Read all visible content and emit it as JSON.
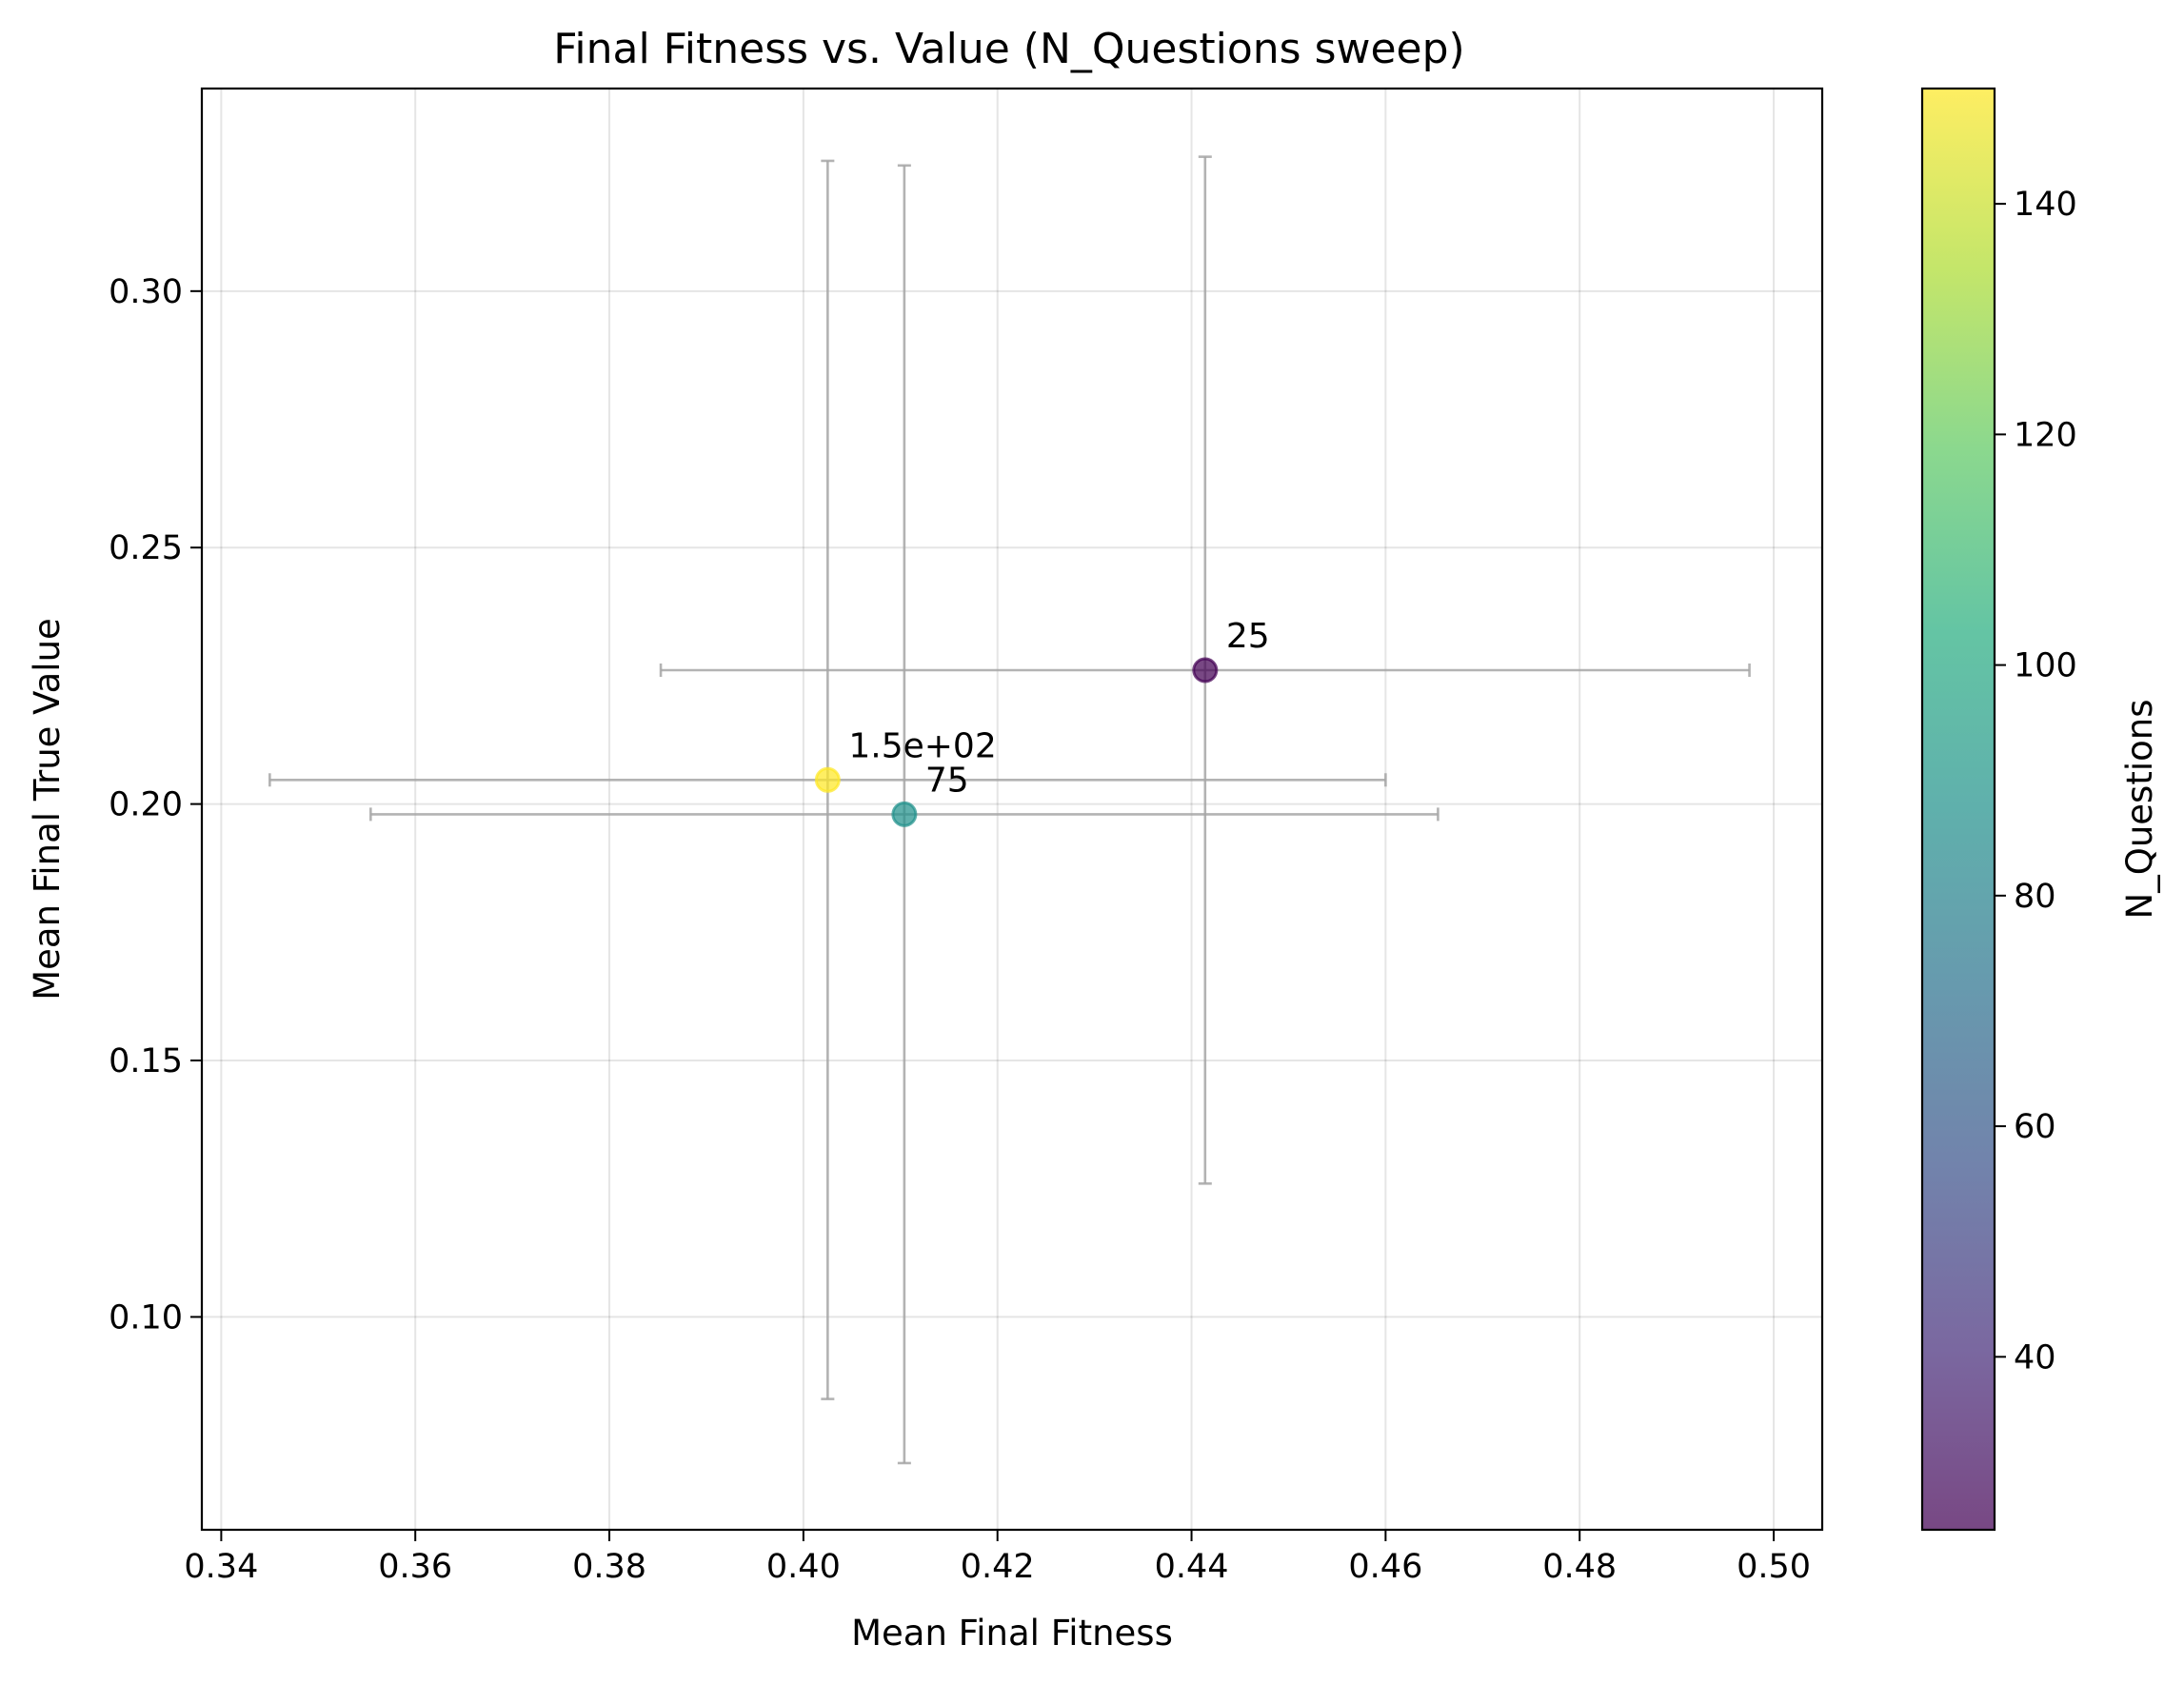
{
  "chart_data": {
    "type": "scatter",
    "title": "Final Fitness vs. Value (N_Questions sweep)",
    "xlabel": "Mean Final Fitness",
    "ylabel": "Mean Final True Value",
    "xlim": [
      0.338,
      0.505
    ],
    "ylim": [
      0.0585,
      0.3395
    ],
    "x_ticks": [
      0.34,
      0.36,
      0.38,
      0.4,
      0.42,
      0.44,
      0.46,
      0.48,
      0.5
    ],
    "x_tick_labels": [
      "0.34",
      "0.36",
      "0.38",
      "0.40",
      "0.42",
      "0.44",
      "0.46",
      "0.48",
      "0.50"
    ],
    "y_ticks": [
      0.1,
      0.15,
      0.2,
      0.25,
      0.3
    ],
    "y_tick_labels": [
      "0.10",
      "0.15",
      "0.20",
      "0.25",
      "0.30"
    ],
    "grid": true,
    "points": [
      {
        "label": "25",
        "n_questions": 25,
        "x": 0.4414,
        "y": 0.2261,
        "x_err": 0.0561,
        "y_err": 0.1001,
        "color": "#440154"
      },
      {
        "label": "75",
        "n_questions": 75,
        "x": 0.4104,
        "y": 0.198,
        "x_err": 0.055,
        "y_err": 0.1265,
        "color": "#21918c"
      },
      {
        "label": "1.5e+02",
        "n_questions": 150,
        "x": 0.4025,
        "y": 0.2047,
        "x_err": 0.0575,
        "y_err": 0.1207,
        "color": "#fde725"
      }
    ],
    "errorbar_color": "#a6a6a6",
    "colorbar": {
      "label": "N_Questions",
      "range": [
        25,
        150
      ],
      "ticks": [
        40,
        60,
        80,
        100,
        120,
        140
      ],
      "tick_labels": [
        "40",
        "60",
        "80",
        "100",
        "120",
        "140"
      ],
      "colormap": "viridis"
    }
  }
}
